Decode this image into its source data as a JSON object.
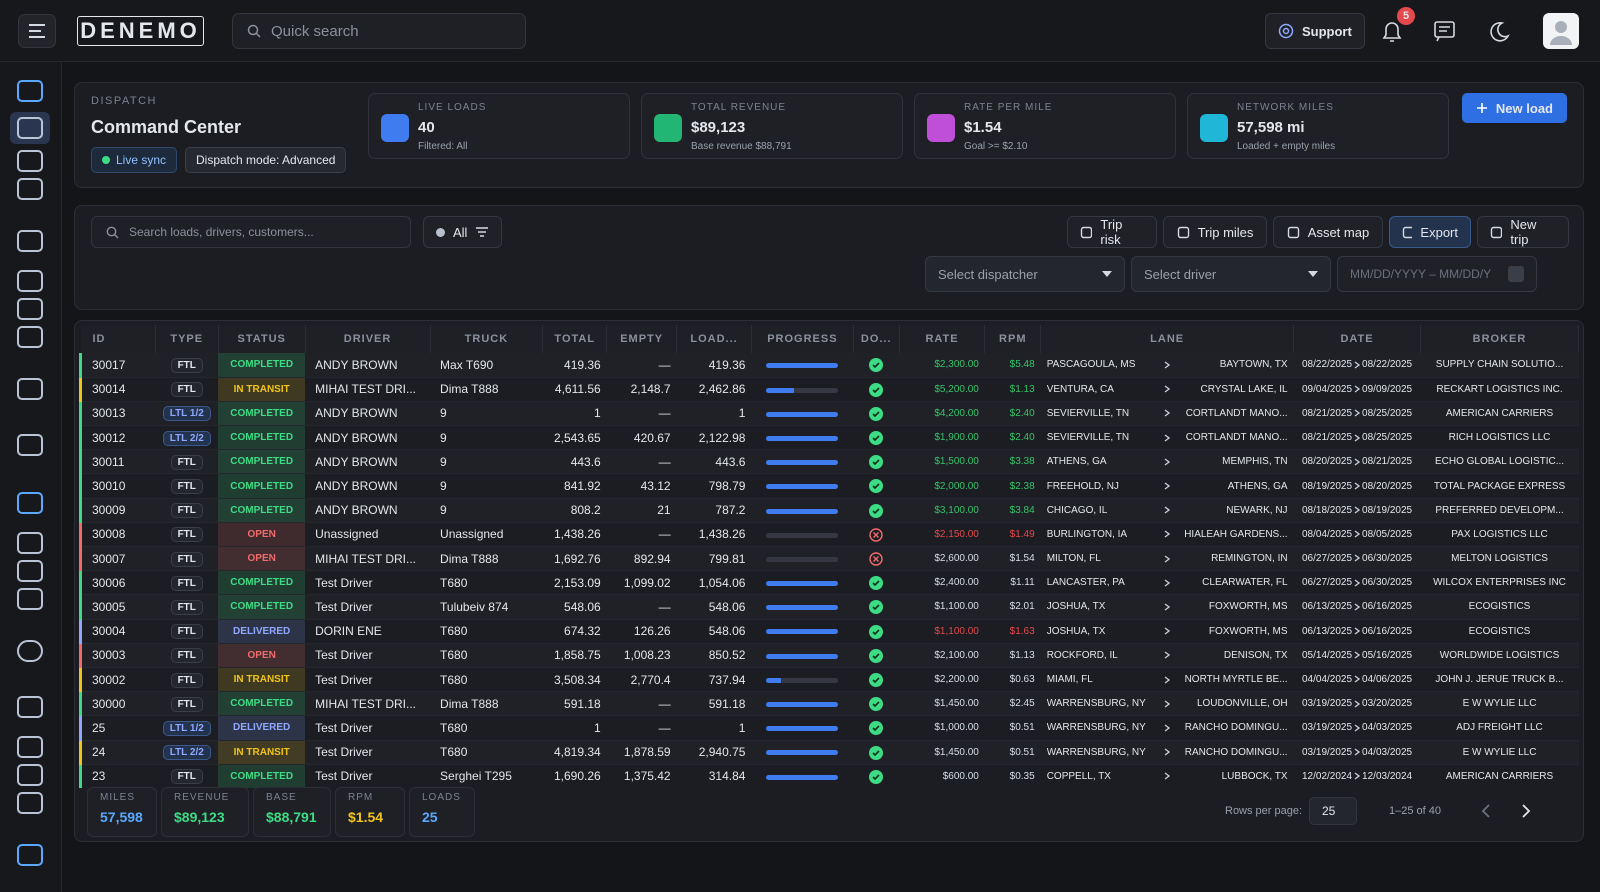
{
  "header": {
    "logo": "DENEMO",
    "search": "Quick search",
    "support": "Support",
    "notifications": 5
  },
  "summary": {
    "section": "DISPATCH",
    "title": "Command Center",
    "badges": [
      "Live sync",
      "Dispatch mode: Advanced"
    ],
    "kpis": [
      {
        "label": "LIVE LOADS",
        "value": "40",
        "note": "Filtered: All",
        "color": "#3f7cf0"
      },
      {
        "label": "TOTAL REVENUE",
        "value": "$89,123",
        "note": "Base revenue $88,791",
        "color": "#22b573"
      },
      {
        "label": "RATE PER MILE",
        "value": "$1.54",
        "note": "Goal >= $2.10",
        "color": "#c04fd8"
      },
      {
        "label": "NETWORK MILES",
        "value": "57,598 mi",
        "note": "Loaded + empty miles",
        "color": "#1fb6d8"
      }
    ],
    "new_load": "New load"
  },
  "filters": {
    "search": "Search loads, drivers, customers...",
    "all": "All",
    "actions": [
      "Trip risk",
      "Trip miles",
      "Asset map",
      "Export",
      "New trip"
    ],
    "selects": [
      "Select dispatcher",
      "Select driver"
    ],
    "date": "MM/DD/YYYY – MM/DD/Y"
  },
  "table": {
    "columns": [
      "ID",
      "TYPE",
      "STATUS",
      "DRIVER",
      "TRUCK",
      "TOTAL",
      "EMPTY",
      "LOAD...",
      "PROGRESS",
      "DO...",
      "RATE",
      "RPM",
      "LANE",
      "DATE",
      "BROKER"
    ],
    "rows": [
      {
        "id": "30017",
        "type": "FTL",
        "status": "COMPLETED",
        "status_color": "#3ddc84",
        "driver": "ANDY BROWN",
        "truck": "Max T690",
        "total": "419.36",
        "empty": "—",
        "loaded": "419.36",
        "progress": 100,
        "docs": true,
        "rate": "$2,300.00",
        "rpm": "$5.48",
        "tone_color": "#35c46a",
        "origin": "PASCAGOULA, MS",
        "dest": "BAYTOWN, TX",
        "start": "08/22/2025",
        "end": "08/22/2025",
        "broker": "SUPPLY CHAIN SOLUTIO..."
      },
      {
        "id": "30014",
        "type": "FTL",
        "status": "IN TRANSIT",
        "status_color": "#f0c419",
        "driver": "MIHAI TEST DRI...",
        "truck": "Dima T888",
        "total": "4,611.56",
        "empty": "2,148.7",
        "loaded": "2,462.86",
        "progress": 38,
        "docs": true,
        "rate": "$5,200.00",
        "rpm": "$1.13",
        "tone_color": "#35c46a",
        "origin": "VENTURA, CA",
        "dest": "CRYSTAL LAKE, IL",
        "start": "09/04/2025",
        "end": "09/09/2025",
        "broker": "RECKART LOGISTICS INC."
      },
      {
        "id": "30013",
        "type": "LTL 1/2",
        "status": "COMPLETED",
        "status_color": "#3ddc84",
        "driver": "ANDY BROWN",
        "truck": "9",
        "total": "1",
        "empty": "—",
        "loaded": "1",
        "progress": 100,
        "docs": true,
        "rate": "$4,200.00",
        "rpm": "$2.40",
        "tone_color": "#35c46a",
        "origin": "SEVIERVILLE, TN",
        "dest": "CORTLANDT MANO...",
        "start": "08/21/2025",
        "end": "08/25/2025",
        "broker": "AMERICAN CARRIERS"
      },
      {
        "id": "30012",
        "type": "LTL 2/2",
        "status": "COMPLETED",
        "status_color": "#3ddc84",
        "driver": "ANDY BROWN",
        "truck": "9",
        "total": "2,543.65",
        "empty": "420.67",
        "loaded": "2,122.98",
        "progress": 100,
        "docs": true,
        "rate": "$1,900.00",
        "rpm": "$2.40",
        "tone_color": "#35c46a",
        "origin": "SEVIERVILLE, TN",
        "dest": "CORTLANDT MANO...",
        "start": "08/21/2025",
        "end": "08/25/2025",
        "broker": "RICH LOGISTICS LLC"
      },
      {
        "id": "30011",
        "type": "FTL",
        "status": "COMPLETED",
        "status_color": "#3ddc84",
        "driver": "ANDY BROWN",
        "truck": "9",
        "total": "443.6",
        "empty": "—",
        "loaded": "443.6",
        "progress": 100,
        "docs": true,
        "rate": "$1,500.00",
        "rpm": "$3.38",
        "tone_color": "#35c46a",
        "origin": "ATHENS, GA",
        "dest": "MEMPHIS, TN",
        "start": "08/20/2025",
        "end": "08/21/2025",
        "broker": "ECHO GLOBAL LOGISTIC..."
      },
      {
        "id": "30010",
        "type": "FTL",
        "status": "COMPLETED",
        "status_color": "#3ddc84",
        "driver": "ANDY BROWN",
        "truck": "9",
        "total": "841.92",
        "empty": "43.12",
        "loaded": "798.79",
        "progress": 100,
        "docs": true,
        "rate": "$2,000.00",
        "rpm": "$2.38",
        "tone_color": "#35c46a",
        "origin": "FREEHOLD, NJ",
        "dest": "ATHENS, GA",
        "start": "08/19/2025",
        "end": "08/20/2025",
        "broker": "TOTAL PACKAGE EXPRESS"
      },
      {
        "id": "30009",
        "type": "FTL",
        "status": "COMPLETED",
        "status_color": "#3ddc84",
        "driver": "ANDY BROWN",
        "truck": "9",
        "total": "808.2",
        "empty": "21",
        "loaded": "787.2",
        "progress": 100,
        "docs": true,
        "rate": "$3,100.00",
        "rpm": "$3.84",
        "tone_color": "#35c46a",
        "origin": "CHICAGO, IL",
        "dest": "NEWARK, NJ",
        "start": "08/18/2025",
        "end": "08/19/2025",
        "broker": "PREFERRED DEVELOPM..."
      },
      {
        "id": "30008",
        "type": "FTL",
        "status": "OPEN",
        "status_color": "#f26b6b",
        "driver": "Unassigned",
        "truck": "Unassigned",
        "total": "1,438.26",
        "empty": "—",
        "loaded": "1,438.26",
        "progress": 0,
        "docs": false,
        "rate": "$2,150.00",
        "rpm": "$1.49",
        "tone_color": "#e5484d",
        "origin": "BURLINGTON, IA",
        "dest": "HIALEAH GARDENS...",
        "start": "08/04/2025",
        "end": "08/05/2025",
        "broker": "PAX LOGISTICS LLC"
      },
      {
        "id": "30007",
        "type": "FTL",
        "status": "OPEN",
        "status_color": "#f26b6b",
        "driver": "MIHAI TEST DRI...",
        "truck": "Dima T888",
        "total": "1,692.76",
        "empty": "892.94",
        "loaded": "799.81",
        "progress": 0,
        "docs": false,
        "rate": "$2,600.00",
        "rpm": "$1.54",
        "tone_color": "#d8dde6",
        "origin": "MILTON, FL",
        "dest": "REMINGTON, IN",
        "start": "06/27/2025",
        "end": "06/30/2025",
        "broker": "MELTON LOGISTICS"
      },
      {
        "id": "30006",
        "type": "FTL",
        "status": "COMPLETED",
        "status_color": "#3ddc84",
        "driver": "Test Driver",
        "truck": "T680",
        "total": "2,153.09",
        "empty": "1,099.02",
        "loaded": "1,054.06",
        "progress": 100,
        "docs": true,
        "rate": "$2,400.00",
        "rpm": "$1.11",
        "tone_color": "#d8dde6",
        "origin": "LANCASTER, PA",
        "dest": "CLEARWATER, FL",
        "start": "06/27/2025",
        "end": "06/30/2025",
        "broker": "WILCOX ENTERPRISES INC"
      },
      {
        "id": "30005",
        "type": "FTL",
        "status": "COMPLETED",
        "status_color": "#3ddc84",
        "driver": "Test Driver",
        "truck": "Tulubeiv 874",
        "total": "548.06",
        "empty": "—",
        "loaded": "548.06",
        "progress": 100,
        "docs": true,
        "rate": "$1,100.00",
        "rpm": "$2.01",
        "tone_color": "#d8dde6",
        "origin": "JOSHUA, TX",
        "dest": "FOXWORTH, MS",
        "start": "06/13/2025",
        "end": "06/16/2025",
        "broker": "ECOGISTICS"
      },
      {
        "id": "30004",
        "type": "FTL",
        "status": "DELIVERED",
        "status_color": "#8fa8ff",
        "driver": "DORIN ENE",
        "truck": "T680",
        "total": "674.32",
        "empty": "126.26",
        "loaded": "548.06",
        "progress": 100,
        "docs": true,
        "rate": "$1,100.00",
        "rpm": "$1.63",
        "tone_color": "#e5484d",
        "origin": "JOSHUA, TX",
        "dest": "FOXWORTH, MS",
        "start": "06/13/2025",
        "end": "06/16/2025",
        "broker": "ECOGISTICS"
      },
      {
        "id": "30003",
        "type": "FTL",
        "status": "OPEN",
        "status_color": "#f26b6b",
        "driver": "Test Driver",
        "truck": "T680",
        "total": "1,858.75",
        "empty": "1,008.23",
        "loaded": "850.52",
        "progress": 100,
        "docs": true,
        "rate": "$2,100.00",
        "rpm": "$1.13",
        "tone_color": "#d8dde6",
        "origin": "ROCKFORD, IL",
        "dest": "DENISON, TX",
        "start": "05/14/2025",
        "end": "05/16/2025",
        "broker": "WORLDWIDE LOGISTICS"
      },
      {
        "id": "30002",
        "type": "FTL",
        "status": "IN TRANSIT",
        "status_color": "#f0c419",
        "driver": "Test Driver",
        "truck": "T680",
        "total": "3,508.34",
        "empty": "2,770.4",
        "loaded": "737.94",
        "progress": 20,
        "docs": true,
        "rate": "$2,200.00",
        "rpm": "$0.63",
        "tone_color": "#d8dde6",
        "origin": "MIAMI, FL",
        "dest": "NORTH MYRTLE BE...",
        "start": "04/04/2025",
        "end": "04/06/2025",
        "broker": "JOHN J. JERUE TRUCK B..."
      },
      {
        "id": "30000",
        "type": "FTL",
        "status": "COMPLETED",
        "status_color": "#3ddc84",
        "driver": "MIHAI TEST DRI...",
        "truck": "Dima T888",
        "total": "591.18",
        "empty": "—",
        "loaded": "591.18",
        "progress": 100,
        "docs": true,
        "rate": "$1,450.00",
        "rpm": "$2.45",
        "tone_color": "#d8dde6",
        "origin": "WARRENSBURG, NY",
        "dest": "LOUDONVILLE, OH",
        "start": "03/19/2025",
        "end": "03/20/2025",
        "broker": "E W WYLIE LLC"
      },
      {
        "id": "25",
        "type": "LTL 1/2",
        "status": "DELIVERED",
        "status_color": "#8fa8ff",
        "driver": "Test Driver",
        "truck": "T680",
        "total": "1",
        "empty": "—",
        "loaded": "1",
        "progress": 100,
        "docs": true,
        "rate": "$1,000.00",
        "rpm": "$0.51",
        "tone_color": "#d8dde6",
        "origin": "WARRENSBURG, NY",
        "dest": "RANCHO DOMINGU...",
        "start": "03/19/2025",
        "end": "04/03/2025",
        "broker": "ADJ FREIGHT LLC"
      },
      {
        "id": "24",
        "type": "LTL 2/2",
        "status": "IN TRANSIT",
        "status_color": "#f0c419",
        "driver": "Test Driver",
        "truck": "T680",
        "total": "4,819.34",
        "empty": "1,878.59",
        "loaded": "2,940.75",
        "progress": 100,
        "docs": true,
        "rate": "$1,450.00",
        "rpm": "$0.51",
        "tone_color": "#d8dde6",
        "origin": "WARRENSBURG, NY",
        "dest": "RANCHO DOMINGU...",
        "start": "03/19/2025",
        "end": "04/03/2025",
        "broker": "E W WYLIE LLC"
      },
      {
        "id": "23",
        "type": "FTL",
        "status": "COMPLETED",
        "status_color": "#3ddc84",
        "driver": "Test Driver",
        "truck": "Serghei T295",
        "total": "1,690.26",
        "empty": "1,375.42",
        "loaded": "314.84",
        "progress": 100,
        "docs": true,
        "rate": "$600.00",
        "rpm": "$0.35",
        "tone_color": "#d8dde6",
        "origin": "COPPELL, TX",
        "dest": "LUBBOCK, TX",
        "start": "12/02/2024",
        "end": "12/03/2024",
        "broker": "AMERICAN CARRIERS"
      }
    ]
  },
  "footer": {
    "stats": [
      {
        "label": "MILES",
        "value": "57,598",
        "color": "#5aa8ff"
      },
      {
        "label": "REVENUE",
        "value": "$89,123",
        "color": "#3ddc84"
      },
      {
        "label": "BASE",
        "value": "$88,791",
        "color": "#3ddc84"
      },
      {
        "label": "RPM",
        "value": "$1.54",
        "color": "#f0c419"
      },
      {
        "label": "LOADS",
        "value": "25",
        "color": "#5aa8ff"
      }
    ],
    "rows_per_page_label": "Rows per page:",
    "rows_per_page": "25",
    "range": "1–25 of 40"
  }
}
